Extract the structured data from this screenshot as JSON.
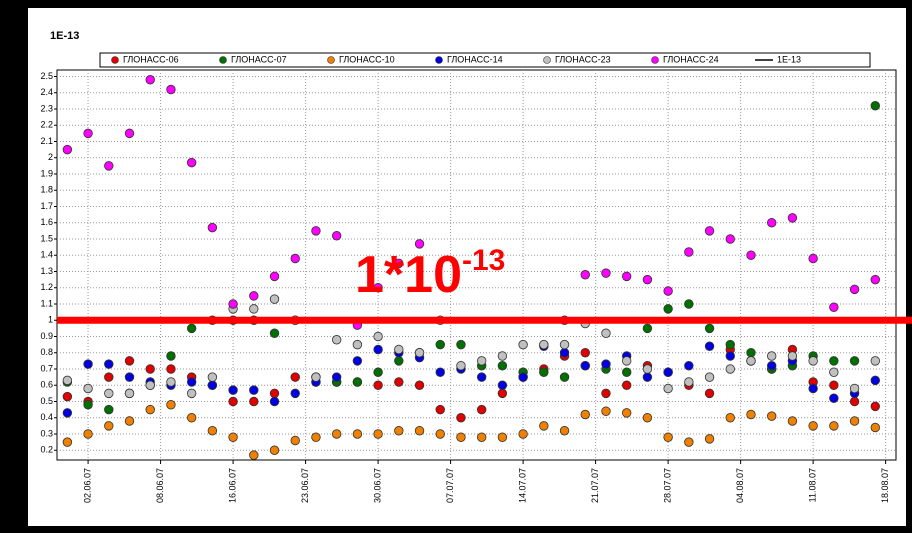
{
  "chart_data": {
    "type": "scatter",
    "y_unit_label": "1E-13",
    "x": [
      -2,
      0,
      2,
      4,
      6,
      8,
      10,
      12,
      14,
      16,
      18,
      20,
      22,
      24,
      26,
      28,
      30,
      32,
      34,
      36,
      38,
      40,
      42,
      44,
      46,
      48,
      50,
      52,
      54,
      56,
      58,
      60,
      62,
      64,
      66,
      68,
      70,
      72,
      74,
      76
    ],
    "series": [
      {
        "name": "ГЛОНАСС-06",
        "color": "#e00000",
        "values": [
          0.53,
          0.5,
          0.65,
          0.75,
          0.7,
          0.7,
          0.65,
          0.6,
          0.5,
          0.5,
          0.55,
          0.65,
          0.62,
          0.62,
          0.62,
          0.6,
          0.62,
          0.6,
          0.45,
          0.4,
          0.45,
          0.55,
          0.65,
          0.7,
          0.78,
          0.8,
          0.55,
          0.6,
          0.72,
          0.68,
          0.6,
          0.55,
          0.82,
          0.75,
          0.7,
          0.82,
          0.62,
          0.6,
          0.5,
          0.47
        ]
      },
      {
        "name": "ГЛОНАСС-07",
        "color": "#007000",
        "values": [
          0.62,
          0.48,
          0.45,
          0.55,
          0.6,
          0.78,
          0.95,
          1.0,
          1.0,
          1.0,
          0.92,
          1.0,
          0.65,
          0.62,
          0.62,
          0.68,
          0.75,
          0.8,
          0.85,
          0.85,
          0.72,
          0.72,
          0.68,
          0.68,
          0.65,
          0.72,
          0.7,
          0.68,
          0.95,
          1.07,
          1.1,
          0.95,
          0.85,
          0.8,
          0.7,
          0.72,
          0.78,
          0.75,
          0.75,
          2.32
        ]
      },
      {
        "name": "ГЛОНАСС-10",
        "color": "#f08000",
        "values": [
          0.25,
          0.3,
          0.35,
          0.38,
          0.45,
          0.48,
          0.4,
          0.32,
          0.28,
          0.17,
          0.2,
          0.26,
          0.28,
          0.3,
          0.3,
          0.3,
          0.32,
          0.32,
          0.3,
          0.28,
          0.28,
          0.28,
          0.3,
          0.35,
          0.32,
          0.42,
          0.44,
          0.43,
          0.4,
          0.28,
          0.25,
          0.27,
          0.4,
          0.42,
          0.41,
          0.38,
          0.35,
          0.35,
          0.38,
          0.34
        ]
      },
      {
        "name": "ГЛОНАСС-14",
        "color": "#0000e0",
        "values": [
          0.43,
          0.73,
          0.73,
          0.65,
          0.62,
          0.6,
          0.62,
          0.6,
          0.57,
          0.57,
          0.5,
          0.55,
          0.62,
          0.65,
          0.75,
          0.82,
          0.8,
          0.77,
          0.68,
          0.7,
          0.65,
          0.6,
          0.65,
          0.84,
          0.8,
          0.72,
          0.73,
          0.78,
          0.65,
          0.68,
          0.72,
          0.84,
          0.78,
          0.75,
          0.72,
          0.75,
          0.58,
          0.52,
          0.55,
          0.63
        ]
      },
      {
        "name": "ГЛОНАСС-23",
        "color": "#c0c0c0",
        "values": [
          0.63,
          0.58,
          0.55,
          0.55,
          0.6,
          0.62,
          0.55,
          0.65,
          1.07,
          1.07,
          1.13,
          1.0,
          0.65,
          0.88,
          0.85,
          0.9,
          0.82,
          0.8,
          1.0,
          0.72,
          0.75,
          0.78,
          0.85,
          0.85,
          0.85,
          0.98,
          0.92,
          0.75,
          0.7,
          0.58,
          0.62,
          0.65,
          0.7,
          0.75,
          0.78,
          0.78,
          0.75,
          0.68,
          0.58,
          0.75
        ]
      },
      {
        "name": "ГЛОНАСС-24",
        "color": "#ff00ff",
        "values": [
          2.05,
          2.15,
          1.95,
          2.15,
          2.48,
          2.42,
          1.97,
          1.57,
          1.1,
          1.15,
          1.27,
          1.38,
          1.55,
          1.52,
          0.97,
          1.2,
          1.35,
          1.47,
          null,
          null,
          null,
          null,
          null,
          null,
          1.0,
          1.28,
          1.29,
          1.27,
          1.25,
          1.18,
          1.42,
          1.55,
          1.5,
          1.4,
          1.6,
          1.63,
          1.38,
          1.08,
          1.19,
          1.25
        ]
      }
    ],
    "reference_line": {
      "name": "1E-13",
      "value": 1,
      "color": "#000000"
    },
    "highlight_line": {
      "value": 1,
      "color": "#ff0000"
    },
    "annotation": {
      "text": "1*10",
      "superscript": "-13",
      "color": "#ff0000"
    },
    "xlim": [
      -3,
      78
    ],
    "xticks": [
      {
        "value": 0,
        "label": "02.06.07"
      },
      {
        "value": 7,
        "label": "08.06.07"
      },
      {
        "value": 14,
        "label": "16.06.07"
      },
      {
        "value": 21,
        "label": "23.06.07"
      },
      {
        "value": 28,
        "label": "30.06.07"
      },
      {
        "value": 35,
        "label": "07.07.07"
      },
      {
        "value": 42,
        "label": "14.07.07"
      },
      {
        "value": 49,
        "label": "21.07.07"
      },
      {
        "value": 56,
        "label": "28.07.07"
      },
      {
        "value": 63,
        "label": "04.08.07"
      },
      {
        "value": 70,
        "label": "11.08.07"
      },
      {
        "value": 77,
        "label": "18.08.07"
      }
    ],
    "ylim": [
      0.14,
      2.54
    ],
    "yticks": [
      0.2,
      0.3,
      0.4,
      0.5,
      0.6,
      0.7,
      0.8,
      0.9,
      1,
      1.1,
      1.2,
      1.3,
      1.4,
      1.5,
      1.6,
      1.7,
      1.8,
      1.9,
      2,
      2.1,
      2.2,
      2.3,
      2.4,
      2.5
    ],
    "grid": true
  }
}
